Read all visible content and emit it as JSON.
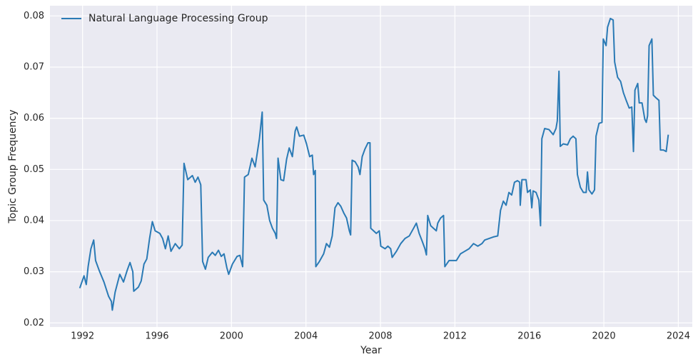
{
  "chart_data": {
    "type": "line",
    "xlabel": "Year",
    "ylabel": "Topic Group Frequency",
    "x": [
      1991.85,
      1992.08,
      1992.2,
      1992.3,
      1992.45,
      1992.6,
      1992.7,
      1992.9,
      1993.15,
      1993.4,
      1993.55,
      1993.6,
      1993.75,
      1994.0,
      1994.2,
      1994.4,
      1994.55,
      1994.7,
      1994.75,
      1995.0,
      1995.15,
      1995.3,
      1995.45,
      1995.6,
      1995.75,
      1995.9,
      1996.15,
      1996.3,
      1996.45,
      1996.6,
      1996.75,
      1996.98,
      1997.2,
      1997.35,
      1997.45,
      1997.65,
      1997.9,
      1998.05,
      1998.2,
      1998.35,
      1998.45,
      1998.6,
      1998.75,
      1998.97,
      1999.13,
      1999.3,
      1999.45,
      1999.6,
      1999.75,
      1999.85,
      2000.05,
      2000.3,
      2000.45,
      2000.6,
      2000.7,
      2000.9,
      2001.1,
      2001.27,
      2001.5,
      2001.65,
      2001.73,
      2001.9,
      2002.05,
      2002.2,
      2002.35,
      2002.42,
      2002.5,
      2002.65,
      2002.8,
      2002.96,
      2003.1,
      2003.27,
      2003.42,
      2003.5,
      2003.65,
      2003.88,
      2004.03,
      2004.2,
      2004.34,
      2004.41,
      2004.5,
      2004.53,
      2004.72,
      2004.95,
      2005.1,
      2005.26,
      2005.41,
      2005.56,
      2005.72,
      2005.87,
      2006.03,
      2006.18,
      2006.33,
      2006.4,
      2006.48,
      2006.64,
      2006.8,
      2006.9,
      2007.02,
      2007.17,
      2007.33,
      2007.44,
      2007.48,
      2007.63,
      2007.78,
      2007.94,
      2008.02,
      2008.25,
      2008.4,
      2008.55,
      2008.63,
      2008.86,
      2009.09,
      2009.32,
      2009.55,
      2009.78,
      2009.93,
      2010.08,
      2010.24,
      2010.39,
      2010.47,
      2010.54,
      2010.7,
      2010.85,
      2011.0,
      2011.08,
      2011.23,
      2011.39,
      2011.46,
      2011.69,
      2011.92,
      2012.08,
      2012.3,
      2012.53,
      2012.76,
      2013.0,
      2013.23,
      2013.45,
      2013.6,
      2013.83,
      2014.06,
      2014.3,
      2014.45,
      2014.6,
      2014.75,
      2014.9,
      2015.05,
      2015.2,
      2015.36,
      2015.48,
      2015.51,
      2015.6,
      2015.82,
      2015.9,
      2016.05,
      2016.13,
      2016.2,
      2016.36,
      2016.51,
      2016.6,
      2016.67,
      2016.82,
      2017.05,
      2017.28,
      2017.43,
      2017.5,
      2017.59,
      2017.66,
      2017.82,
      2018.05,
      2018.2,
      2018.35,
      2018.5,
      2018.58,
      2018.74,
      2018.9,
      2019.05,
      2019.12,
      2019.2,
      2019.36,
      2019.5,
      2019.58,
      2019.74,
      2019.9,
      2019.97,
      2020.12,
      2020.2,
      2020.35,
      2020.5,
      2020.58,
      2020.74,
      2020.9,
      2021.05,
      2021.2,
      2021.36,
      2021.5,
      2021.59,
      2021.67,
      2021.82,
      2021.9,
      2022.05,
      2022.2,
      2022.28,
      2022.35,
      2022.43,
      2022.58,
      2022.66,
      2022.8,
      2022.96,
      2023.04,
      2023.2,
      2023.35,
      2023.46
    ],
    "series": [
      {
        "name": "Natural Language Processing Group",
        "color": "#2a7ab5",
        "values": [
          0.0268,
          0.0292,
          0.0275,
          0.031,
          0.0345,
          0.0362,
          0.0322,
          0.0302,
          0.028,
          0.0252,
          0.0242,
          0.0225,
          0.026,
          0.0295,
          0.028,
          0.0303,
          0.0318,
          0.03,
          0.0262,
          0.027,
          0.0282,
          0.0315,
          0.0325,
          0.0365,
          0.0398,
          0.038,
          0.0375,
          0.0365,
          0.0345,
          0.037,
          0.034,
          0.0355,
          0.0345,
          0.0352,
          0.0512,
          0.048,
          0.0488,
          0.0475,
          0.0485,
          0.047,
          0.032,
          0.0305,
          0.0328,
          0.0338,
          0.0332,
          0.0342,
          0.033,
          0.0335,
          0.0308,
          0.0295,
          0.0315,
          0.033,
          0.0332,
          0.031,
          0.0485,
          0.049,
          0.0522,
          0.0505,
          0.056,
          0.0612,
          0.044,
          0.043,
          0.04,
          0.0385,
          0.0375,
          0.0365,
          0.0522,
          0.048,
          0.0478,
          0.052,
          0.0542,
          0.0525,
          0.0575,
          0.0583,
          0.0565,
          0.0567,
          0.055,
          0.0525,
          0.0528,
          0.049,
          0.0498,
          0.031,
          0.032,
          0.0335,
          0.0355,
          0.0348,
          0.037,
          0.0425,
          0.0435,
          0.0428,
          0.0415,
          0.0405,
          0.038,
          0.0372,
          0.0518,
          0.0515,
          0.0505,
          0.049,
          0.0525,
          0.054,
          0.0552,
          0.0552,
          0.0385,
          0.038,
          0.0375,
          0.038,
          0.035,
          0.0345,
          0.035,
          0.0345,
          0.0328,
          0.034,
          0.0355,
          0.0365,
          0.037,
          0.0385,
          0.0395,
          0.0375,
          0.036,
          0.0345,
          0.0333,
          0.041,
          0.039,
          0.0385,
          0.038,
          0.0395,
          0.0405,
          0.041,
          0.031,
          0.0322,
          0.0322,
          0.0322,
          0.0335,
          0.034,
          0.0345,
          0.0355,
          0.035,
          0.0355,
          0.0362,
          0.0365,
          0.0368,
          0.037,
          0.042,
          0.0438,
          0.043,
          0.0455,
          0.045,
          0.0475,
          0.0478,
          0.0475,
          0.043,
          0.048,
          0.048,
          0.0455,
          0.046,
          0.0425,
          0.0458,
          0.0455,
          0.044,
          0.039,
          0.056,
          0.058,
          0.0578,
          0.0568,
          0.058,
          0.0595,
          0.0692,
          0.0545,
          0.055,
          0.0548,
          0.056,
          0.0565,
          0.056,
          0.049,
          0.0465,
          0.0455,
          0.0455,
          0.0495,
          0.046,
          0.0452,
          0.046,
          0.0565,
          0.059,
          0.0592,
          0.0755,
          0.0742,
          0.0778,
          0.0795,
          0.0792,
          0.071,
          0.068,
          0.0672,
          0.065,
          0.0635,
          0.062,
          0.0622,
          0.0535,
          0.0655,
          0.0668,
          0.063,
          0.063,
          0.0598,
          0.0592,
          0.0605,
          0.0742,
          0.0755,
          0.0645,
          0.064,
          0.0635,
          0.0538,
          0.0538,
          0.0535,
          0.0568
        ]
      }
    ],
    "xlim": [
      1990.25,
      2024.75
    ],
    "xticks": [
      1992,
      1996,
      2000,
      2004,
      2008,
      2012,
      2016,
      2020,
      2024
    ],
    "ylim": [
      0.0192,
      0.082
    ],
    "yticks": [
      0.02,
      0.03,
      0.04,
      0.05,
      0.06,
      0.07,
      0.08
    ],
    "grid": true,
    "legend": "upper left"
  }
}
